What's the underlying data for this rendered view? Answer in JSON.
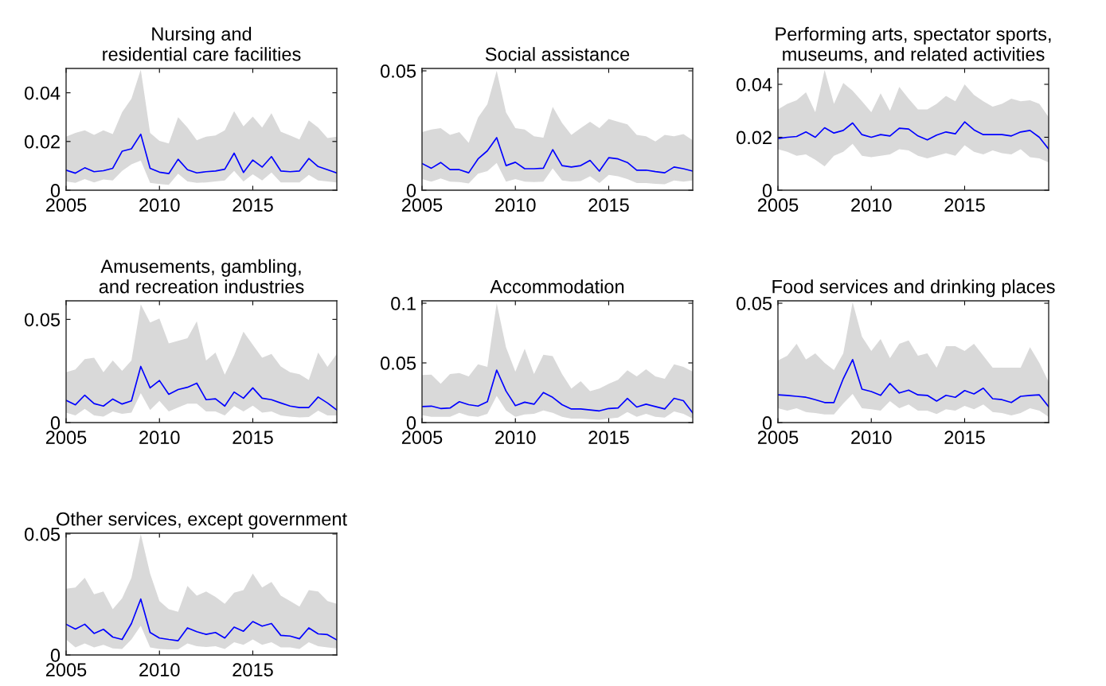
{
  "chart_data": [
    {
      "type": "line",
      "title": "Nursing and\nresidential care facilities",
      "x": [
        2005,
        2005.5,
        2006,
        2006.5,
        2007,
        2007.5,
        2008,
        2008.5,
        2009,
        2009.5,
        2010,
        2010.5,
        2011,
        2011.5,
        2012,
        2012.5,
        2013,
        2013.5,
        2014,
        2014.5,
        2015,
        2015.5,
        2016,
        2016.5,
        2017,
        2017.5,
        2018,
        2018.5,
        2019,
        2019.5
      ],
      "xlim": [
        2005,
        2019.5
      ],
      "xticks": [
        2005,
        2010,
        2015
      ],
      "ylim": [
        0,
        0.05
      ],
      "yticks": [
        0,
        0.02,
        0.04
      ],
      "series": [
        {
          "color": "#0000ff",
          "values": [
            0.0082,
            0.007,
            0.0092,
            0.0076,
            0.008,
            0.009,
            0.016,
            0.017,
            0.023,
            0.009,
            0.0074,
            0.0068,
            0.0127,
            0.0084,
            0.0071,
            0.0076,
            0.0079,
            0.0086,
            0.0152,
            0.0073,
            0.0124,
            0.0095,
            0.0138,
            0.0079,
            0.0076,
            0.0079,
            0.013,
            0.0097,
            0.0084,
            0.0071
          ],
          "upper": [
            0.022,
            0.0235,
            0.0246,
            0.0227,
            0.0246,
            0.023,
            0.032,
            0.0376,
            0.0495,
            0.0235,
            0.0203,
            0.0192,
            0.03,
            0.0257,
            0.0205,
            0.022,
            0.0225,
            0.0246,
            0.0324,
            0.0262,
            0.0302,
            0.0257,
            0.0316,
            0.024,
            0.0225,
            0.0208,
            0.0287,
            0.0257,
            0.0214,
            0.022
          ],
          "lower": [
            0.0036,
            0.003,
            0.0046,
            0.0032,
            0.0044,
            0.004,
            0.0079,
            0.0106,
            0.0122,
            0.003,
            0.0025,
            0.0022,
            0.0068,
            0.0036,
            0.003,
            0.0032,
            0.0036,
            0.004,
            0.0079,
            0.0036,
            0.0065,
            0.004,
            0.0073,
            0.0032,
            0.0032,
            0.0032,
            0.0063,
            0.004,
            0.0036,
            0.0032
          ]
        }
      ]
    },
    {
      "type": "line",
      "title": "Social assistance",
      "x": [
        2005,
        2005.5,
        2006,
        2006.5,
        2007,
        2007.5,
        2008,
        2008.5,
        2009,
        2009.5,
        2010,
        2010.5,
        2011,
        2011.5,
        2012,
        2012.5,
        2013,
        2013.5,
        2014,
        2014.5,
        2015,
        2015.5,
        2016,
        2016.5,
        2017,
        2017.5,
        2018,
        2018.5,
        2019,
        2019.5
      ],
      "xlim": [
        2005,
        2019.5
      ],
      "xticks": [
        2005,
        2010,
        2015
      ],
      "ylim": [
        0,
        0.051
      ],
      "yticks": [
        0,
        0.05
      ],
      "series": [
        {
          "color": "#0000ff",
          "values": [
            0.0112,
            0.0092,
            0.0116,
            0.0086,
            0.0086,
            0.0073,
            0.0131,
            0.0165,
            0.022,
            0.0103,
            0.0117,
            0.009,
            0.009,
            0.0092,
            0.017,
            0.0103,
            0.0097,
            0.0103,
            0.0125,
            0.008,
            0.0136,
            0.0131,
            0.0116,
            0.0084,
            0.0084,
            0.0078,
            0.0073,
            0.0097,
            0.009,
            0.008
          ],
          "upper": [
            0.0243,
            0.0254,
            0.026,
            0.0232,
            0.0243,
            0.0198,
            0.0304,
            0.036,
            0.05,
            0.0326,
            0.026,
            0.0254,
            0.0226,
            0.022,
            0.0349,
            0.0282,
            0.0232,
            0.026,
            0.0287,
            0.026,
            0.0298,
            0.0287,
            0.0276,
            0.0232,
            0.0226,
            0.0204,
            0.0232,
            0.0226,
            0.0235,
            0.0209
          ],
          "lower": [
            0.0047,
            0.0036,
            0.0049,
            0.0036,
            0.0034,
            0.0028,
            0.0069,
            0.008,
            0.0114,
            0.0036,
            0.0047,
            0.0036,
            0.0034,
            0.0036,
            0.0092,
            0.0041,
            0.0036,
            0.0038,
            0.0058,
            0.003,
            0.0064,
            0.0058,
            0.0047,
            0.003,
            0.003,
            0.0027,
            0.0025,
            0.0041,
            0.0036,
            0.0041
          ]
        }
      ]
    },
    {
      "type": "line",
      "title": "Performing arts, spectator sports,\nmuseums, and related activities",
      "x": [
        2005,
        2005.5,
        2006,
        2006.5,
        2007,
        2007.5,
        2008,
        2008.5,
        2009,
        2009.5,
        2010,
        2010.5,
        2011,
        2011.5,
        2012,
        2012.5,
        2013,
        2013.5,
        2014,
        2014.5,
        2015,
        2015.5,
        2016,
        2016.5,
        2017,
        2017.5,
        2018,
        2018.5,
        2019,
        2019.5
      ],
      "xlim": [
        2005,
        2019.5
      ],
      "xticks": [
        2005,
        2010,
        2015
      ],
      "ylim": [
        0,
        0.046
      ],
      "yticks": [
        0,
        0.02,
        0.04
      ],
      "series": [
        {
          "color": "#0000ff",
          "values": [
            0.0195,
            0.02,
            0.0203,
            0.022,
            0.02,
            0.0236,
            0.0216,
            0.0226,
            0.0254,
            0.021,
            0.02,
            0.021,
            0.0205,
            0.0234,
            0.0231,
            0.0205,
            0.019,
            0.0208,
            0.022,
            0.0213,
            0.0258,
            0.0228,
            0.021,
            0.021,
            0.021,
            0.0205,
            0.022,
            0.0226,
            0.02,
            0.0155
          ],
          "upper": [
            0.0305,
            0.0326,
            0.034,
            0.037,
            0.0295,
            0.0455,
            0.0326,
            0.0405,
            0.0376,
            0.0336,
            0.0295,
            0.0366,
            0.03,
            0.039,
            0.0346,
            0.0305,
            0.0305,
            0.0326,
            0.0356,
            0.0336,
            0.04,
            0.036,
            0.0336,
            0.0316,
            0.0326,
            0.0346,
            0.0336,
            0.034,
            0.0326,
            0.0276
          ],
          "lower": [
            0.0155,
            0.0145,
            0.013,
            0.0135,
            0.0115,
            0.009,
            0.013,
            0.0145,
            0.0175,
            0.013,
            0.0125,
            0.013,
            0.0135,
            0.0155,
            0.015,
            0.013,
            0.012,
            0.013,
            0.014,
            0.013,
            0.017,
            0.0145,
            0.0135,
            0.015,
            0.014,
            0.0135,
            0.0155,
            0.0125,
            0.012,
            0.0105
          ]
        }
      ]
    },
    {
      "type": "line",
      "title": "Amusements, gambling,\nand recreation industries",
      "x": [
        2005,
        2005.5,
        2006,
        2006.5,
        2007,
        2007.5,
        2008,
        2008.5,
        2009,
        2009.5,
        2010,
        2010.5,
        2011,
        2011.5,
        2012,
        2012.5,
        2013,
        2013.5,
        2014,
        2014.5,
        2015,
        2015.5,
        2016,
        2016.5,
        2017,
        2017.5,
        2018,
        2018.5,
        2019,
        2019.5
      ],
      "xlim": [
        2005,
        2019.5
      ],
      "xticks": [
        2005,
        2010,
        2015
      ],
      "ylim": [
        0,
        0.059
      ],
      "yticks": [
        0,
        0.05
      ],
      "series": [
        {
          "color": "#0000ff",
          "values": [
            0.0108,
            0.0086,
            0.0133,
            0.0092,
            0.008,
            0.0114,
            0.009,
            0.0105,
            0.0272,
            0.0168,
            0.0204,
            0.0137,
            0.016,
            0.0171,
            0.0191,
            0.0111,
            0.0115,
            0.008,
            0.0148,
            0.0118,
            0.0168,
            0.0118,
            0.0111,
            0.0095,
            0.008,
            0.0073,
            0.0073,
            0.0124,
            0.0095,
            0.0061
          ],
          "upper": [
            0.0244,
            0.0257,
            0.0308,
            0.0314,
            0.0244,
            0.0301,
            0.0251,
            0.0301,
            0.0573,
            0.0485,
            0.0504,
            0.0384,
            0.0396,
            0.0409,
            0.0491,
            0.0301,
            0.0339,
            0.0232,
            0.0327,
            0.0441,
            0.0377,
            0.0314,
            0.0333,
            0.0272,
            0.0244,
            0.0234,
            0.0206,
            0.0339,
            0.027,
            0.0333
          ],
          "lower": [
            0.0048,
            0.0035,
            0.0067,
            0.0035,
            0.0029,
            0.0054,
            0.0042,
            0.0048,
            0.0143,
            0.0061,
            0.0105,
            0.0054,
            0.0073,
            0.0092,
            0.0092,
            0.0054,
            0.0054,
            0.0035,
            0.008,
            0.0054,
            0.0082,
            0.0048,
            0.0054,
            0.0035,
            0.0029,
            0.0025,
            0.0027,
            0.0058,
            0.0035,
            0.0035
          ]
        }
      ]
    },
    {
      "type": "line",
      "title": "Accommodation",
      "x": [
        2005,
        2005.5,
        2006,
        2006.5,
        2007,
        2007.5,
        2008,
        2008.5,
        2009,
        2009.5,
        2010,
        2010.5,
        2011,
        2011.5,
        2012,
        2012.5,
        2013,
        2013.5,
        2014,
        2014.5,
        2015,
        2015.5,
        2016,
        2016.5,
        2017,
        2017.5,
        2018,
        2018.5,
        2019,
        2019.5
      ],
      "xlim": [
        2005,
        2019.5
      ],
      "xticks": [
        2005,
        2010,
        2015
      ],
      "ylim": [
        0,
        0.102
      ],
      "yticks": [
        0,
        0.05,
        0.1
      ],
      "series": [
        {
          "color": "#0000ff",
          "values": [
            0.0134,
            0.0138,
            0.0118,
            0.0122,
            0.0175,
            0.015,
            0.0138,
            0.0175,
            0.044,
            0.0264,
            0.0142,
            0.0171,
            0.0154,
            0.0252,
            0.0211,
            0.015,
            0.0114,
            0.0114,
            0.0106,
            0.0098,
            0.0118,
            0.0122,
            0.0203,
            0.013,
            0.0154,
            0.0134,
            0.0114,
            0.0203,
            0.0183,
            0.0081
          ],
          "upper": [
            0.0398,
            0.0402,
            0.0325,
            0.0407,
            0.0415,
            0.0386,
            0.0488,
            0.0467,
            0.1,
            0.063,
            0.0427,
            0.0618,
            0.0407,
            0.0569,
            0.0557,
            0.0407,
            0.0285,
            0.0346,
            0.0264,
            0.0285,
            0.0325,
            0.0358,
            0.0439,
            0.0386,
            0.0447,
            0.0386,
            0.0366,
            0.0488,
            0.0467,
            0.0427
          ],
          "lower": [
            0.0061,
            0.0049,
            0.0049,
            0.0049,
            0.0081,
            0.0057,
            0.0049,
            0.0073,
            0.0224,
            0.0102,
            0.0049,
            0.0069,
            0.0073,
            0.0102,
            0.0081,
            0.0049,
            0.0033,
            0.0033,
            0.0028,
            0.0024,
            0.0033,
            0.0041,
            0.0089,
            0.0049,
            0.0073,
            0.0049,
            0.0041,
            0.0093,
            0.0073,
            0.0033
          ]
        }
      ]
    },
    {
      "type": "line",
      "title": "Food services and drinking places",
      "x": [
        2005,
        2005.5,
        2006,
        2006.5,
        2007,
        2007.5,
        2008,
        2008.5,
        2009,
        2009.5,
        2010,
        2010.5,
        2011,
        2011.5,
        2012,
        2012.5,
        2013,
        2013.5,
        2014,
        2014.5,
        2015,
        2015.5,
        2016,
        2016.5,
        2017,
        2017.5,
        2018,
        2018.5,
        2019,
        2019.5
      ],
      "xlim": [
        2005,
        2019.5
      ],
      "xticks": [
        2005,
        2010,
        2015
      ],
      "ylim": [
        0,
        0.051
      ],
      "yticks": [
        0,
        0.05
      ],
      "series": [
        {
          "color": "#0000ff",
          "values": [
            0.0116,
            0.0114,
            0.011,
            0.0106,
            0.0096,
            0.0084,
            0.0084,
            0.0184,
            0.0264,
            0.014,
            0.013,
            0.0114,
            0.0164,
            0.0124,
            0.0136,
            0.0116,
            0.0114,
            0.009,
            0.0114,
            0.0106,
            0.0134,
            0.012,
            0.0144,
            0.01,
            0.0096,
            0.0084,
            0.011,
            0.0114,
            0.0116,
            0.0066
          ],
          "upper": [
            0.026,
            0.028,
            0.033,
            0.0264,
            0.029,
            0.025,
            0.022,
            0.029,
            0.0504,
            0.036,
            0.03,
            0.035,
            0.027,
            0.033,
            0.0344,
            0.028,
            0.029,
            0.023,
            0.032,
            0.032,
            0.03,
            0.033,
            0.028,
            0.023,
            0.023,
            0.023,
            0.023,
            0.0316,
            0.025,
            0.017
          ],
          "lower": [
            0.006,
            0.005,
            0.006,
            0.0044,
            0.004,
            0.0034,
            0.0034,
            0.008,
            0.012,
            0.006,
            0.0056,
            0.005,
            0.009,
            0.006,
            0.0076,
            0.005,
            0.005,
            0.0036,
            0.0056,
            0.005,
            0.007,
            0.0056,
            0.0076,
            0.0044,
            0.004,
            0.003,
            0.004,
            0.006,
            0.005,
            0.0024
          ]
        }
      ]
    },
    {
      "type": "line",
      "title": "Other services, except government",
      "x": [
        2005,
        2005.5,
        2006,
        2006.5,
        2007,
        2007.5,
        2008,
        2008.5,
        2009,
        2009.5,
        2010,
        2010.5,
        2011,
        2011.5,
        2012,
        2012.5,
        2013,
        2013.5,
        2014,
        2014.5,
        2015,
        2015.5,
        2016,
        2016.5,
        2017,
        2017.5,
        2018,
        2018.5,
        2019,
        2019.5
      ],
      "xlim": [
        2005,
        2019.5
      ],
      "xticks": [
        2005,
        2010,
        2015
      ],
      "ylim": [
        0,
        0.0503
      ],
      "yticks": [
        0,
        0.05
      ],
      "series": [
        {
          "color": "#0000ff",
          "values": [
            0.0127,
            0.0107,
            0.0127,
            0.0089,
            0.0106,
            0.0074,
            0.0064,
            0.013,
            0.0231,
            0.0093,
            0.007,
            0.0064,
            0.0059,
            0.0112,
            0.0096,
            0.0085,
            0.0093,
            0.007,
            0.0115,
            0.0098,
            0.0138,
            0.0119,
            0.013,
            0.0081,
            0.0078,
            0.0067,
            0.0112,
            0.0087,
            0.0084,
            0.0062
          ],
          "upper": [
            0.0274,
            0.0279,
            0.0319,
            0.0251,
            0.0262,
            0.0189,
            0.0234,
            0.0319,
            0.05,
            0.0336,
            0.0223,
            0.0189,
            0.0178,
            0.0285,
            0.0245,
            0.0262,
            0.024,
            0.0211,
            0.0257,
            0.0268,
            0.0336,
            0.0279,
            0.0302,
            0.0245,
            0.0223,
            0.02,
            0.0268,
            0.0262,
            0.0223,
            0.0211
          ],
          "lower": [
            0.0064,
            0.0031,
            0.0048,
            0.0031,
            0.0042,
            0.0027,
            0.0025,
            0.0064,
            0.0121,
            0.0031,
            0.0025,
            0.0023,
            0.0023,
            0.0048,
            0.0036,
            0.0033,
            0.0036,
            0.0025,
            0.0053,
            0.0042,
            0.0064,
            0.0042,
            0.0053,
            0.0031,
            0.0031,
            0.0025,
            0.0053,
            0.0036,
            0.0031,
            0.0027
          ]
        }
      ]
    }
  ]
}
